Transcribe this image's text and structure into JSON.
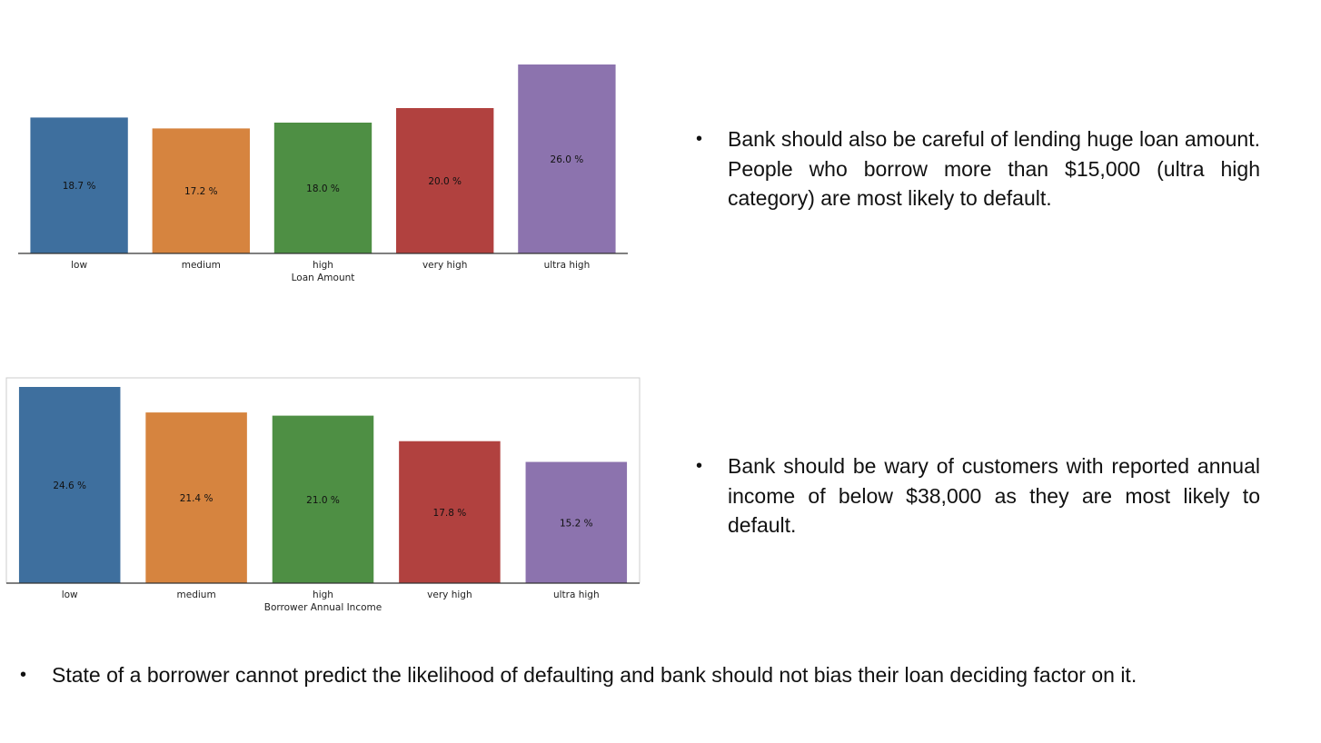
{
  "insights": [
    "Bank should also be careful of lending huge loan amount. People who borrow more than $15,000 (ultra high category) are most likely to default.",
    "Bank should be wary of customers with reported annual income of below $38,000 as they are most likely to default.",
    "State of a borrower cannot predict the likelihood of defaulting and bank should not bias their loan deciding factor on it."
  ],
  "bullet_symbol": "•",
  "chart_data": [
    {
      "type": "bar",
      "categories": [
        "low",
        "medium",
        "high",
        "very high",
        "ultra high"
      ],
      "values": [
        18.7,
        17.2,
        18.0,
        20.0,
        26.0
      ],
      "value_labels": [
        "18.7 %",
        "17.2 %",
        "18.0 %",
        "20.0 %",
        "26.0 %"
      ],
      "xlabel": "Loan Amount",
      "ylabel": "",
      "ylim": [
        0,
        26.0
      ],
      "grid": false,
      "frame": "bottom-axis-only",
      "colors": [
        "#3e6f9e",
        "#d6843f",
        "#4e8f44",
        "#b1413f",
        "#8c73ae"
      ]
    },
    {
      "type": "bar",
      "categories": [
        "low",
        "medium",
        "high",
        "very high",
        "ultra high"
      ],
      "values": [
        24.6,
        21.4,
        21.0,
        17.8,
        15.2
      ],
      "value_labels": [
        "24.6 %",
        "21.4 %",
        "21.0 %",
        "17.8 %",
        "15.2 %"
      ],
      "xlabel": "Borrower Annual Income",
      "ylabel": "",
      "ylim": [
        0,
        24.6
      ],
      "grid": false,
      "frame": "boxed",
      "colors": [
        "#3e6f9e",
        "#d6843f",
        "#4e8f44",
        "#b1413f",
        "#8c73ae"
      ]
    }
  ]
}
